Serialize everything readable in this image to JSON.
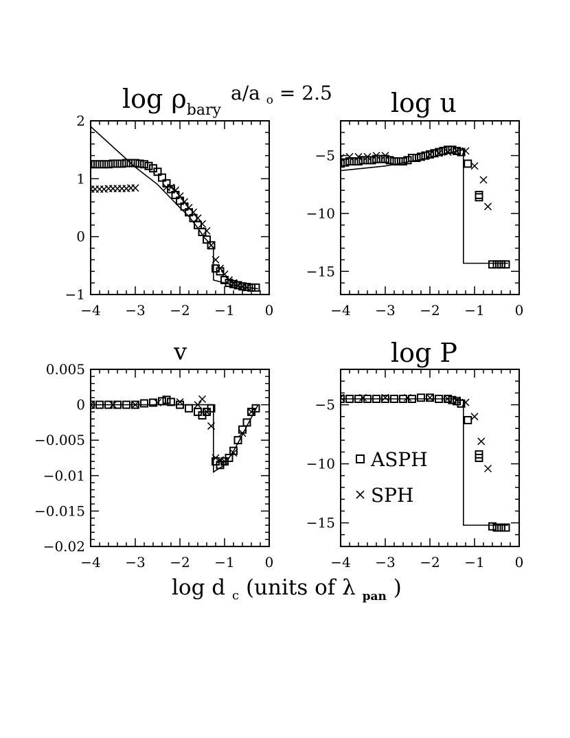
{
  "figure": {
    "caption_text": "a/a",
    "caption_sub": "o",
    "caption_value": " = 2.5",
    "xlabel_main": "log d",
    "xlabel_sub": "c",
    "xlabel_mid": " (units of ",
    "xlabel_lambda": "λ",
    "xlabel_lambda_sub": "pan",
    "xlabel_close": ")"
  },
  "chart_data": [
    {
      "type": "scatter",
      "panel": "top-left",
      "title": "log ρ",
      "title_sub": "bary",
      "xlim": [
        -4,
        0
      ],
      "ylim": [
        -1,
        2
      ],
      "xticks": [
        -4,
        -3,
        -2,
        -1,
        0
      ],
      "yticks": [
        -1,
        0,
        1,
        2
      ],
      "xtick_labels": [
        "−4",
        "−3",
        "−2",
        "−1",
        "0"
      ],
      "ytick_labels": [
        "−1",
        "0",
        "1",
        "2"
      ],
      "series": [
        {
          "name": "analytic",
          "style": "line",
          "x": [
            -4.0,
            -3.5,
            -3.0,
            -2.5,
            -2.0,
            -1.8,
            -1.6,
            -1.45,
            -1.35,
            -1.3,
            -1.25,
            -1.25,
            -1.0,
            -0.75,
            -0.5,
            -0.25
          ],
          "y": [
            1.9,
            1.55,
            1.2,
            0.9,
            0.5,
            0.35,
            0.15,
            -0.02,
            -0.1,
            -0.15,
            -0.2,
            -0.75,
            -0.8,
            -0.85,
            -0.88,
            -0.9
          ]
        },
        {
          "name": "ASPH",
          "style": "square",
          "x": [
            -4.0,
            -3.9,
            -3.8,
            -3.7,
            -3.6,
            -3.5,
            -3.4,
            -3.3,
            -3.2,
            -3.1,
            -3.0,
            -2.9,
            -2.8,
            -2.7,
            -2.6,
            -2.5,
            -2.4,
            -2.3,
            -2.2,
            -2.1,
            -2.0,
            -1.9,
            -1.8,
            -1.7,
            -1.6,
            -1.5,
            -1.4,
            -1.3,
            -1.2,
            -1.1,
            -1.0,
            -0.9,
            -0.8,
            -0.7,
            -0.6,
            -0.5,
            -0.4,
            -0.3
          ],
          "y": [
            1.25,
            1.25,
            1.25,
            1.25,
            1.25,
            1.26,
            1.26,
            1.26,
            1.27,
            1.27,
            1.27,
            1.26,
            1.25,
            1.22,
            1.18,
            1.12,
            1.02,
            0.92,
            0.82,
            0.72,
            0.62,
            0.52,
            0.42,
            0.32,
            0.2,
            0.08,
            -0.05,
            -0.15,
            -0.55,
            -0.6,
            -0.75,
            -0.8,
            -0.82,
            -0.84,
            -0.86,
            -0.87,
            -0.88,
            -0.88
          ]
        },
        {
          "name": "SPH",
          "style": "cross",
          "x": [
            -4.0,
            -3.9,
            -3.8,
            -3.7,
            -3.6,
            -3.5,
            -3.4,
            -3.3,
            -3.2,
            -3.1,
            -3.0,
            -2.3,
            -2.2,
            -2.1,
            -2.0,
            -1.9,
            -1.8,
            -1.7,
            -1.6,
            -1.5,
            -1.4,
            -1.3,
            -1.2,
            -1.1,
            -1.0,
            -0.9,
            -0.8,
            -0.7,
            -0.6,
            -0.5
          ],
          "y": [
            0.82,
            0.82,
            0.82,
            0.82,
            0.83,
            0.83,
            0.83,
            0.83,
            0.83,
            0.84,
            0.84,
            0.85,
            0.85,
            0.8,
            0.7,
            0.6,
            0.5,
            0.42,
            0.32,
            0.22,
            0.1,
            -0.15,
            -0.4,
            -0.55,
            -0.65,
            -0.75,
            -0.8,
            -0.84,
            -0.86,
            -0.88
          ]
        }
      ]
    },
    {
      "type": "scatter",
      "panel": "top-right",
      "title": "log u",
      "xlim": [
        -4,
        0
      ],
      "ylim": [
        -17,
        -2
      ],
      "xticks": [
        -4,
        -3,
        -2,
        -1,
        0
      ],
      "yticks": [
        -15,
        -10,
        -5
      ],
      "xtick_labels": [
        "−4",
        "−3",
        "−2",
        "−1",
        "0"
      ],
      "ytick_labels": [
        "−15",
        "−10",
        "−5"
      ],
      "series": [
        {
          "name": "analytic",
          "style": "line",
          "x": [
            -4.0,
            -3.0,
            -2.0,
            -1.5,
            -1.25,
            -1.25,
            -0.25
          ],
          "y": [
            -6.3,
            -5.9,
            -5.2,
            -4.7,
            -4.5,
            -14.3,
            -14.3
          ]
        },
        {
          "name": "ASPH",
          "style": "square",
          "x": [
            -4.0,
            -3.9,
            -3.8,
            -3.7,
            -3.6,
            -3.5,
            -3.4,
            -3.3,
            -3.2,
            -3.1,
            -3.0,
            -2.9,
            -2.8,
            -2.7,
            -2.6,
            -2.5,
            -2.4,
            -2.3,
            -2.2,
            -2.1,
            -2.0,
            -1.9,
            -1.8,
            -1.7,
            -1.6,
            -1.5,
            -1.4,
            -1.3,
            -1.15,
            -0.9,
            -0.9,
            -0.6,
            -0.5,
            -0.4,
            -0.3
          ],
          "y": [
            -5.6,
            -5.6,
            -5.5,
            -5.5,
            -5.5,
            -5.4,
            -5.4,
            -5.4,
            -5.3,
            -5.3,
            -5.3,
            -5.4,
            -5.5,
            -5.5,
            -5.5,
            -5.4,
            -5.2,
            -5.2,
            -5.1,
            -5.0,
            -4.9,
            -4.8,
            -4.7,
            -4.6,
            -4.5,
            -4.5,
            -4.6,
            -4.7,
            -5.7,
            -8.4,
            -8.6,
            -14.4,
            -14.4,
            -14.4,
            -14.4
          ]
        },
        {
          "name": "SPH",
          "style": "cross",
          "x": [
            -4.0,
            -3.8,
            -3.6,
            -3.4,
            -3.2,
            -3.0,
            -2.0,
            -1.8,
            -1.6,
            -1.4,
            -1.2,
            -1.0,
            -0.8,
            -0.7
          ],
          "y": [
            -5.2,
            -5.1,
            -5.1,
            -5.1,
            -5.0,
            -5.0,
            -4.9,
            -4.8,
            -4.7,
            -4.6,
            -4.6,
            -5.9,
            -7.1,
            -9.4
          ]
        }
      ]
    },
    {
      "type": "scatter",
      "panel": "bottom-left",
      "title": "v",
      "xlim": [
        -4,
        0
      ],
      "ylim": [
        -0.02,
        0.005
      ],
      "xticks": [
        -4,
        -3,
        -2,
        -1,
        0
      ],
      "yticks": [
        -0.02,
        -0.015,
        -0.01,
        -0.005,
        0,
        0.005
      ],
      "xtick_labels": [
        "−4",
        "−3",
        "−2",
        "−1",
        "0"
      ],
      "ytick_labels": [
        "−0.02",
        "−0.015",
        "−0.01",
        "−0.005",
        "0",
        "0.005"
      ],
      "series": [
        {
          "name": "analytic",
          "style": "line",
          "x": [
            -4.0,
            -3.0,
            -2.0,
            -1.5,
            -1.25,
            -1.25,
            -1.0,
            -0.75,
            -0.5,
            -0.25
          ],
          "y": [
            0.0,
            0.0,
            0.0,
            0.0,
            0.0,
            -0.0095,
            -0.0085,
            -0.006,
            -0.003,
            0.0
          ]
        },
        {
          "name": "ASPH",
          "style": "square",
          "x": [
            -4.0,
            -3.8,
            -3.6,
            -3.4,
            -3.2,
            -3.0,
            -2.8,
            -2.6,
            -2.4,
            -2.3,
            -2.2,
            -2.0,
            -1.8,
            -1.6,
            -1.5,
            -1.4,
            -1.3,
            -1.2,
            -1.1,
            -1.0,
            -0.9,
            -0.8,
            -0.7,
            -0.6,
            -0.5,
            -0.4,
            -0.3
          ],
          "y": [
            0.0,
            0.0,
            0.0,
            0.0,
            0.0,
            0.0,
            0.0002,
            0.0003,
            0.0005,
            0.0007,
            0.0004,
            0.0,
            -0.0005,
            -0.001,
            -0.0015,
            -0.001,
            -0.0005,
            -0.008,
            -0.0085,
            -0.008,
            -0.0075,
            -0.0065,
            -0.005,
            -0.0035,
            -0.0025,
            -0.001,
            -0.0005
          ]
        },
        {
          "name": "SPH",
          "style": "cross",
          "x": [
            -4.0,
            -3.5,
            -3.0,
            -2.5,
            -2.0,
            -1.6,
            -1.5,
            -1.4,
            -1.3,
            -1.2,
            -1.1,
            -1.0,
            -0.8,
            -0.6,
            -0.4
          ],
          "y": [
            0.0,
            0.0,
            0.0,
            0.0003,
            0.0004,
            0.0,
            0.0008,
            -0.001,
            -0.003,
            -0.0075,
            -0.0078,
            -0.008,
            -0.0068,
            -0.004,
            -0.001
          ]
        }
      ]
    },
    {
      "type": "scatter",
      "panel": "bottom-right",
      "title": "log P",
      "xlim": [
        -4,
        0
      ],
      "ylim": [
        -17,
        -2
      ],
      "xticks": [
        -4,
        -3,
        -2,
        -1,
        0
      ],
      "yticks": [
        -15,
        -10,
        -5
      ],
      "xtick_labels": [
        "−4",
        "−3",
        "−2",
        "−1",
        "0"
      ],
      "ytick_labels": [
        "−15",
        "−10",
        "−5"
      ],
      "legend": {
        "placement": "center-left",
        "entries": [
          {
            "label": "ASPH",
            "marker": "square"
          },
          {
            "label": "SPH",
            "marker": "cross"
          }
        ]
      },
      "series": [
        {
          "name": "analytic",
          "style": "line",
          "x": [
            -4.0,
            -3.0,
            -2.0,
            -1.5,
            -1.25,
            -1.25,
            -0.75,
            -0.25
          ],
          "y": [
            -4.5,
            -4.5,
            -4.5,
            -4.5,
            -4.6,
            -15.2,
            -15.2,
            -15.2
          ]
        },
        {
          "name": "ASPH",
          "style": "square",
          "x": [
            -4.0,
            -3.8,
            -3.6,
            -3.4,
            -3.2,
            -3.0,
            -2.8,
            -2.6,
            -2.4,
            -2.2,
            -2.0,
            -1.8,
            -1.6,
            -1.5,
            -1.4,
            -1.3,
            -1.15,
            -0.9,
            -0.9,
            -0.6,
            -0.5,
            -0.4,
            -0.3
          ],
          "y": [
            -4.5,
            -4.5,
            -4.5,
            -4.5,
            -4.5,
            -4.5,
            -4.5,
            -4.5,
            -4.5,
            -4.4,
            -4.4,
            -4.5,
            -4.5,
            -4.6,
            -4.7,
            -4.9,
            -6.3,
            -9.2,
            -9.5,
            -15.3,
            -15.4,
            -15.4,
            -15.4
          ]
        },
        {
          "name": "SPH",
          "style": "cross",
          "x": [
            -4.0,
            -3.5,
            -3.0,
            -2.5,
            -2.0,
            -1.6,
            -1.4,
            -1.2,
            -1.0,
            -0.85,
            -0.7
          ],
          "y": [
            -4.4,
            -4.4,
            -4.4,
            -4.4,
            -4.4,
            -4.5,
            -4.6,
            -4.8,
            -6.0,
            -8.1,
            -10.4
          ]
        }
      ]
    }
  ]
}
